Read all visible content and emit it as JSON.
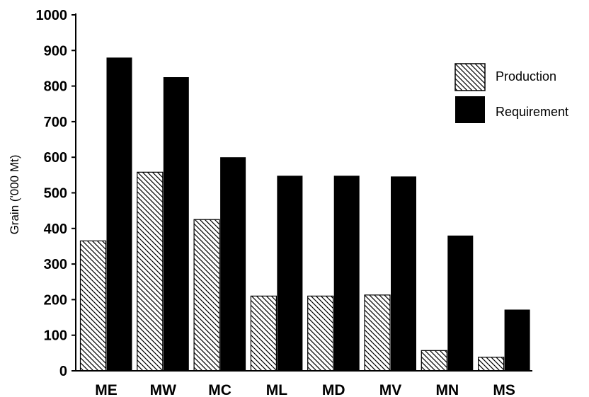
{
  "chart_data": {
    "type": "bar",
    "title": "",
    "xlabel": "",
    "ylabel": "Grain ('000 Mt)",
    "ylim": [
      0,
      1000
    ],
    "yticks": [
      0,
      100,
      200,
      300,
      400,
      500,
      600,
      700,
      800,
      900,
      1000
    ],
    "categories": [
      "ME",
      "MW",
      "MC",
      "ML",
      "MD",
      "MV",
      "MN",
      "MS"
    ],
    "series": [
      {
        "name": "Production",
        "values": [
          365,
          558,
          425,
          210,
          210,
          213,
          57,
          38
        ],
        "fill": "hatched"
      },
      {
        "name": "Requirement",
        "values": [
          880,
          825,
          600,
          548,
          548,
          546,
          380,
          172
        ],
        "fill": "#000000"
      }
    ],
    "legend": "top-right",
    "grid": false
  }
}
